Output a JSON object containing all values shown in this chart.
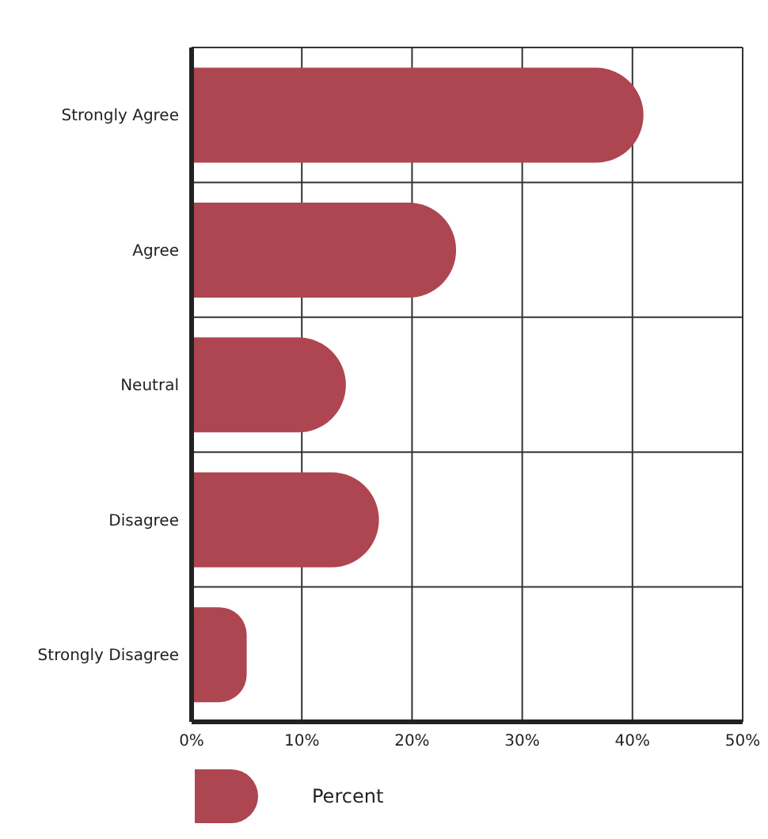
{
  "chart_data": {
    "type": "bar",
    "orientation": "horizontal",
    "categories": [
      "Strongly Agree",
      "Agree",
      "Neutral",
      "Disagree",
      "Strongly Disagree"
    ],
    "series": [
      {
        "name": "Percent",
        "color": "#ad4650",
        "values": [
          41,
          24,
          14,
          17,
          5
        ]
      }
    ],
    "xlim": [
      0,
      50
    ],
    "xticks": [
      {
        "value": 0,
        "label": "0%"
      },
      {
        "value": 10,
        "label": "10%"
      },
      {
        "value": 20,
        "label": "20%"
      },
      {
        "value": 30,
        "label": "30%"
      },
      {
        "value": 40,
        "label": "40%"
      },
      {
        "value": 50,
        "label": "50%"
      }
    ],
    "grid": true,
    "legend": "bottom"
  }
}
